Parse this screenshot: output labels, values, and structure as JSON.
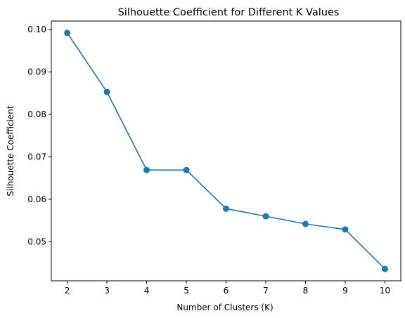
{
  "chart_data": {
    "type": "line",
    "title": "Silhouette Coefficient for Different K Values",
    "xlabel": "Number of Clusters (K)",
    "ylabel": "Silhouette Coefficient",
    "x": [
      2,
      3,
      4,
      5,
      6,
      7,
      8,
      9,
      10
    ],
    "series": [
      {
        "values": [
          0.0992,
          0.0853,
          0.0669,
          0.0669,
          0.0578,
          0.056,
          0.0542,
          0.0529,
          0.0436
        ]
      }
    ],
    "xlim": [
      1.6,
      10.4
    ],
    "ylim": [
      0.0408,
      0.102
    ],
    "xticks": [
      2,
      3,
      4,
      5,
      6,
      7,
      8,
      9,
      10
    ],
    "yticks": [
      0.05,
      0.06,
      0.07,
      0.08,
      0.09,
      0.1
    ],
    "ytick_labels": [
      "0.05",
      "0.06",
      "0.07",
      "0.08",
      "0.09",
      "0.10"
    ],
    "grid": false,
    "colors": {
      "line": "#1f77b4",
      "marker": "#1f77b4"
    }
  }
}
